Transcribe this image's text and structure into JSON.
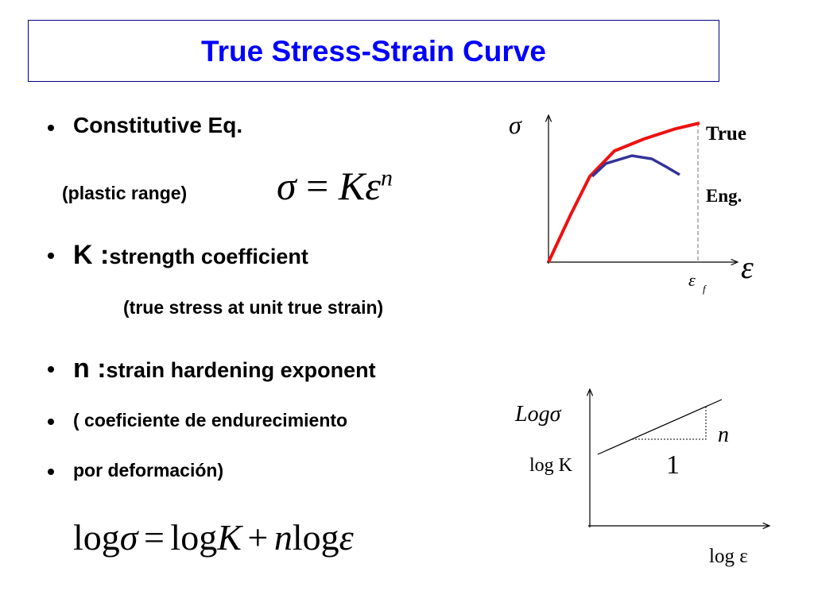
{
  "title": "True Stress-Strain Curve",
  "bullets": [
    {
      "text": "Constitutive Eq.",
      "note": "(plastic range)"
    },
    {
      "lead": "K :",
      "text": "strength coefficient",
      "note": "(true stress at unit true strain)"
    },
    {
      "lead": "n :",
      "text": "strain hardening exponent"
    },
    {
      "text": "( coeficiente de endurecimiento"
    },
    {
      "text": "por deformación)"
    }
  ],
  "equation": {
    "lhs": "σ",
    "op": "=",
    "rhs": "Kε",
    "exponent": "n"
  },
  "log_equation": [
    "log",
    "σ",
    "=",
    "log",
    "K",
    "+",
    "n",
    "log",
    "ε"
  ],
  "stress_strain_diagram": {
    "y_label": "σ",
    "x_label": "ε",
    "fracture_strain": "ε",
    "fracture_subscript": "f",
    "true_label": "True",
    "eng_label": "Eng."
  },
  "log_diagram": {
    "y_label": "Logσ",
    "intercept_label": "log K",
    "x_label": "log ε",
    "rise_label": "n",
    "run_label": "1"
  }
}
